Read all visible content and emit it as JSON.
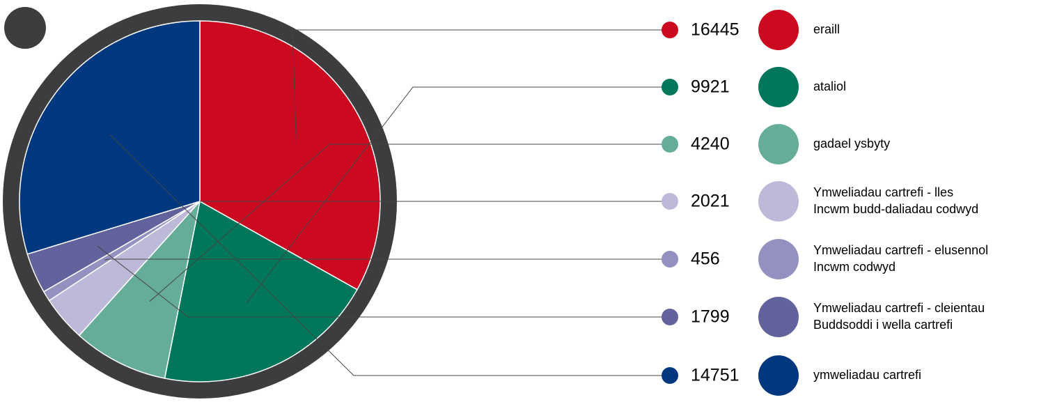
{
  "chart_data": {
    "type": "pie",
    "categories": [
      [
        "eraill"
      ],
      [
        "ataliol"
      ],
      [
        "gadael ysbyty"
      ],
      [
        "Ymweliadau cartrefi - lles",
        "Incwm budd-daliadau codwyd"
      ],
      [
        "Ymweliadau cartrefi - elusennol",
        "Incwm codwyd"
      ],
      [
        "Ymweliadau cartrefi - cleientau",
        "Buddsoddi i wella cartrefi"
      ],
      [
        "ymweliadau cartrefi"
      ]
    ],
    "values": [
      16445,
      9921,
      4240,
      2021,
      456,
      1799,
      14751
    ],
    "colors": [
      "#cc0a1f",
      "#00775a",
      "#66ad99",
      "#bcbad8",
      "#9391bf",
      "#62639c",
      "#00387f"
    ]
  }
}
